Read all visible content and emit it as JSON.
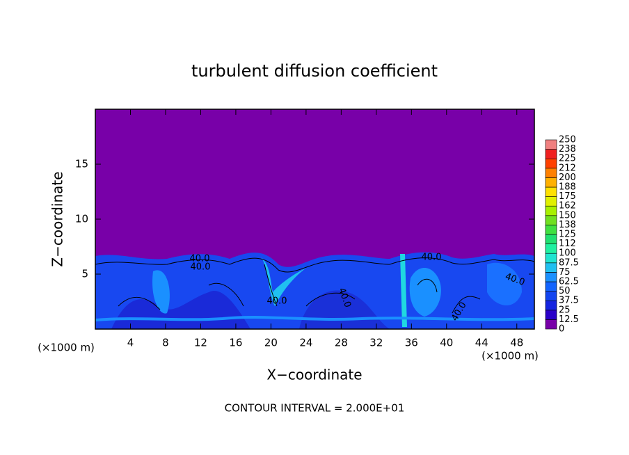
{
  "chart_data": {
    "type": "contour",
    "title": "turbulent diffusion coefficient",
    "xlabel": "X−coordinate",
    "ylabel": "Z−coordinate",
    "x_unit_left": "(×1000 m)",
    "x_unit_right": "(×1000 m)",
    "footer": "CONTOUR INTERVAL = 2.000E+01",
    "xlim": [
      0,
      50
    ],
    "ylim": [
      0,
      20
    ],
    "xticks": [
      4,
      8,
      12,
      16,
      20,
      24,
      28,
      32,
      36,
      40,
      44,
      48
    ],
    "yticks": [
      5,
      10,
      15
    ],
    "contour_labels": [
      "40.0",
      "40.0",
      "40.0",
      "40.0",
      "40.0",
      "40.0",
      "40.0"
    ],
    "colorbar": {
      "levels": [
        0,
        12.5,
        25,
        37.5,
        50,
        62.5,
        75,
        87.5,
        100,
        112,
        125,
        138,
        150,
        162,
        175,
        188,
        200,
        212,
        225,
        238,
        250
      ],
      "colors": [
        "#7800a8",
        "#2a00c8",
        "#1424e0",
        "#1244f0",
        "#1264ff",
        "#1a90ff",
        "#20c0f0",
        "#20e4d0",
        "#20f0a0",
        "#20e070",
        "#40e040",
        "#70e020",
        "#a8f000",
        "#e0f000",
        "#ffe000",
        "#ffb000",
        "#ff8000",
        "#ff4000",
        "#f02020",
        "#f08080"
      ]
    }
  }
}
